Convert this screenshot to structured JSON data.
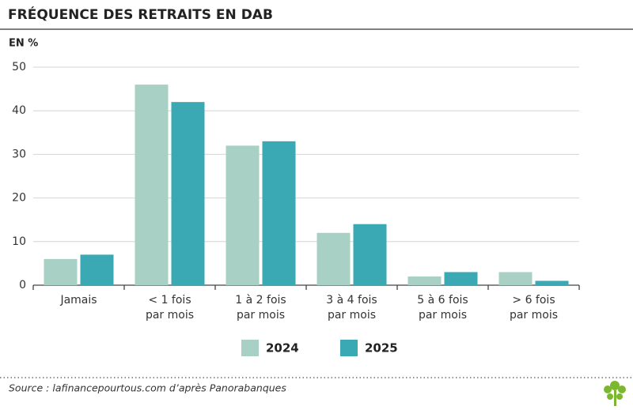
{
  "chart_data": {
    "type": "bar",
    "title": "FRÉQUENCE DES RETRAITS EN DAB",
    "y_label": "EN %",
    "categories": [
      "Jamais",
      "< 1 fois\npar mois",
      "1 à 2 fois\npar mois",
      "3 à 4 fois\npar mois",
      "5 à 6 fois\npar mois",
      "> 6 fois\npar mois"
    ],
    "series": [
      {
        "name": "2024",
        "color": "#a9d0c4",
        "values": [
          6,
          46,
          32,
          12,
          2,
          3
        ]
      },
      {
        "name": "2025",
        "color": "#3ba9b4",
        "values": [
          7,
          42,
          33,
          14,
          3,
          1
        ]
      }
    ],
    "ylim": [
      0,
      50
    ],
    "yticks": [
      0,
      10,
      20,
      30,
      40,
      50
    ],
    "grid": true,
    "source": "Source : lafinancepourtous.com d’après Panorabanques"
  }
}
